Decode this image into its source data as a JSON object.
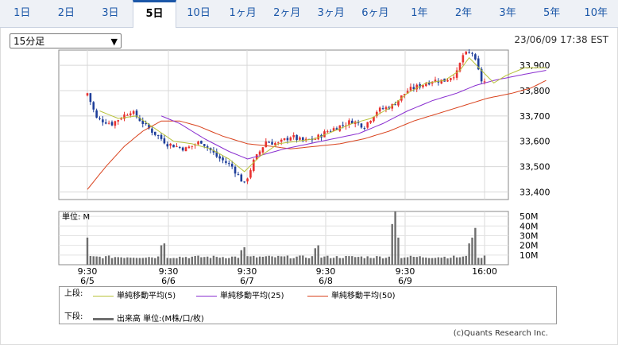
{
  "tabs": [
    "1日",
    "2日",
    "3日",
    "5日",
    "10日",
    "1ヶ月",
    "2ヶ月",
    "3ヶ月",
    "6ヶ月",
    "1年",
    "2年",
    "3年",
    "5年",
    "10年"
  ],
  "active_tab": "5日",
  "interval_select": "15分足",
  "timestamp": "23/06/09 17:38 EST",
  "volume_unit_label": "単位: M",
  "legend": {
    "upper_label": "上段:",
    "lower_label": "下段:",
    "ma5": "単純移動平均(5)",
    "ma25": "単純移動平均(25)",
    "ma50": "単純移動平均(50)",
    "volume": "出来高 単位:(M株/口/枚)"
  },
  "colors": {
    "up": "#e8312f",
    "down": "#1f3f9a",
    "ma5": "#b8c23a",
    "ma25": "#8a2fd0",
    "ma50": "#d9431e",
    "volume": "#6e6e6e",
    "active_tab": "#1b57a8"
  },
  "copyright": "(c)Quants Research Inc.",
  "chart_data": {
    "type": "candlestick",
    "price_axis": {
      "ticks": [
        "33,900",
        "33,800",
        "33,700",
        "33,600",
        "33,500",
        "33,400"
      ],
      "range": [
        33370,
        33960
      ]
    },
    "volume_axis": {
      "ticks": [
        "50M",
        "40M",
        "30M",
        "20M",
        "10M"
      ],
      "range": [
        0,
        55
      ]
    },
    "x_ticks": [
      {
        "time": "9:30",
        "date": "6/5"
      },
      {
        "time": "9:30",
        "date": "6/6"
      },
      {
        "time": "9:30",
        "date": "6/7"
      },
      {
        "time": "9:30",
        "date": "6/8"
      },
      {
        "time": "9:30",
        "date": "6/9"
      },
      {
        "time": "16:00",
        "date": ""
      }
    ],
    "days": [
      "6/5",
      "6/6",
      "6/7",
      "6/8",
      "6/9"
    ],
    "bars_per_day": 26,
    "close_path": [
      {
        "i": 0,
        "p": 33790
      },
      {
        "i": 3,
        "p": 33690
      },
      {
        "i": 8,
        "p": 33670
      },
      {
        "i": 14,
        "p": 33720
      },
      {
        "i": 20,
        "p": 33650
      },
      {
        "i": 26,
        "p": 33590
      },
      {
        "i": 32,
        "p": 33570
      },
      {
        "i": 37,
        "p": 33600
      },
      {
        "i": 42,
        "p": 33540
      },
      {
        "i": 47,
        "p": 33500
      },
      {
        "i": 51,
        "p": 33430
      },
      {
        "i": 54,
        "p": 33520
      },
      {
        "i": 58,
        "p": 33600
      },
      {
        "i": 62,
        "p": 33590
      },
      {
        "i": 66,
        "p": 33620
      },
      {
        "i": 70,
        "p": 33600
      },
      {
        "i": 74,
        "p": 33610
      },
      {
        "i": 78,
        "p": 33640
      },
      {
        "i": 82,
        "p": 33660
      },
      {
        "i": 86,
        "p": 33680
      },
      {
        "i": 90,
        "p": 33660
      },
      {
        "i": 94,
        "p": 33720
      },
      {
        "i": 99,
        "p": 33740
      },
      {
        "i": 104,
        "p": 33800
      },
      {
        "i": 108,
        "p": 33820
      },
      {
        "i": 112,
        "p": 33840
      },
      {
        "i": 116,
        "p": 33840
      },
      {
        "i": 120,
        "p": 33870
      },
      {
        "i": 122,
        "p": 33940
      },
      {
        "i": 125,
        "p": 33950
      },
      {
        "i": 128,
        "p": 33840
      },
      {
        "i": 132,
        "p": 33820
      },
      {
        "i": 136,
        "p": 33880
      },
      {
        "i": 140,
        "p": 33890
      },
      {
        "i": 144,
        "p": 33900
      },
      {
        "i": 149,
        "p": 33880
      }
    ],
    "ma5": [
      {
        "i": 4,
        "p": 33720
      },
      {
        "i": 10,
        "p": 33690
      },
      {
        "i": 16,
        "p": 33700
      },
      {
        "i": 22,
        "p": 33650
      },
      {
        "i": 28,
        "p": 33600
      },
      {
        "i": 34,
        "p": 33590
      },
      {
        "i": 40,
        "p": 33570
      },
      {
        "i": 46,
        "p": 33530
      },
      {
        "i": 51,
        "p": 33480
      },
      {
        "i": 56,
        "p": 33540
      },
      {
        "i": 62,
        "p": 33590
      },
      {
        "i": 68,
        "p": 33600
      },
      {
        "i": 74,
        "p": 33610
      },
      {
        "i": 80,
        "p": 33640
      },
      {
        "i": 86,
        "p": 33670
      },
      {
        "i": 92,
        "p": 33690
      },
      {
        "i": 98,
        "p": 33730
      },
      {
        "i": 104,
        "p": 33790
      },
      {
        "i": 110,
        "p": 33830
      },
      {
        "i": 116,
        "p": 33840
      },
      {
        "i": 121,
        "p": 33880
      },
      {
        "i": 124,
        "p": 33930
      },
      {
        "i": 128,
        "p": 33880
      },
      {
        "i": 132,
        "p": 33830
      },
      {
        "i": 136,
        "p": 33860
      },
      {
        "i": 142,
        "p": 33890
      },
      {
        "i": 149,
        "p": 33890
      }
    ],
    "ma25": [
      {
        "i": 24,
        "p": 33700
      },
      {
        "i": 30,
        "p": 33670
      },
      {
        "i": 38,
        "p": 33610
      },
      {
        "i": 46,
        "p": 33560
      },
      {
        "i": 52,
        "p": 33530
      },
      {
        "i": 58,
        "p": 33550
      },
      {
        "i": 64,
        "p": 33570
      },
      {
        "i": 72,
        "p": 33590
      },
      {
        "i": 80,
        "p": 33610
      },
      {
        "i": 88,
        "p": 33630
      },
      {
        "i": 96,
        "p": 33670
      },
      {
        "i": 104,
        "p": 33720
      },
      {
        "i": 112,
        "p": 33760
      },
      {
        "i": 120,
        "p": 33790
      },
      {
        "i": 126,
        "p": 33820
      },
      {
        "i": 132,
        "p": 33840
      },
      {
        "i": 140,
        "p": 33860
      },
      {
        "i": 149,
        "p": 33880
      }
    ],
    "ma50": [
      {
        "i": 0,
        "p": 33410
      },
      {
        "i": 6,
        "p": 33500
      },
      {
        "i": 12,
        "p": 33580
      },
      {
        "i": 18,
        "p": 33640
      },
      {
        "i": 24,
        "p": 33680
      },
      {
        "i": 30,
        "p": 33680
      },
      {
        "i": 36,
        "p": 33660
      },
      {
        "i": 44,
        "p": 33620
      },
      {
        "i": 52,
        "p": 33590
      },
      {
        "i": 60,
        "p": 33580
      },
      {
        "i": 66,
        "p": 33570
      },
      {
        "i": 74,
        "p": 33580
      },
      {
        "i": 82,
        "p": 33590
      },
      {
        "i": 90,
        "p": 33610
      },
      {
        "i": 98,
        "p": 33640
      },
      {
        "i": 106,
        "p": 33680
      },
      {
        "i": 114,
        "p": 33710
      },
      {
        "i": 122,
        "p": 33740
      },
      {
        "i": 130,
        "p": 33770
      },
      {
        "i": 138,
        "p": 33790
      },
      {
        "i": 144,
        "p": 33810
      },
      {
        "i": 149,
        "p": 33840
      }
    ],
    "volume_spikes": [
      {
        "i": 0,
        "v": 28
      },
      {
        "i": 24,
        "v": 20
      },
      {
        "i": 25,
        "v": 22
      },
      {
        "i": 50,
        "v": 15
      },
      {
        "i": 51,
        "v": 18
      },
      {
        "i": 74,
        "v": 17
      },
      {
        "i": 75,
        "v": 20
      },
      {
        "i": 99,
        "v": 42
      },
      {
        "i": 100,
        "v": 55
      },
      {
        "i": 101,
        "v": 28
      },
      {
        "i": 124,
        "v": 22
      },
      {
        "i": 125,
        "v": 28
      },
      {
        "i": 126,
        "v": 38
      },
      {
        "i": 148,
        "v": 22
      },
      {
        "i": 149,
        "v": 38
      }
    ],
    "volume_base": 8
  }
}
